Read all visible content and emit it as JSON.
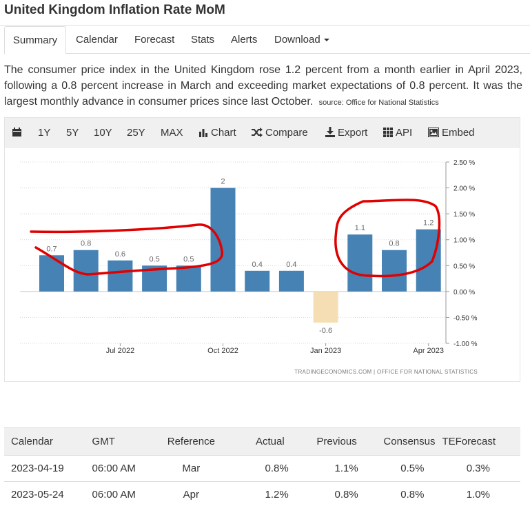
{
  "page": {
    "title": "United Kingdom Inflation Rate MoM"
  },
  "tabs": [
    {
      "label": "Summary"
    },
    {
      "label": "Calendar"
    },
    {
      "label": "Forecast"
    },
    {
      "label": "Stats"
    },
    {
      "label": "Alerts"
    },
    {
      "label": "Download"
    }
  ],
  "description": {
    "text": "The consumer price index in the United Kingdom rose 1.2 percent from a month earlier in April 2023, following a 0.8 percent increase in March and exceeding market expectations of 0.8 percent. It was the largest monthly advance in consumer prices since last October.",
    "source_label": "source:",
    "source_name": "Office for National Statistics"
  },
  "toolbar": {
    "ranges": [
      "1Y",
      "5Y",
      "10Y",
      "25Y",
      "MAX"
    ],
    "chart_label": "Chart",
    "compare_label": "Compare",
    "export_label": "Export",
    "api_label": "API",
    "embed_label": "Embed"
  },
  "chart_data": {
    "type": "bar",
    "categories": [
      "May 2022",
      "Jun 2022",
      "Jul 2022",
      "Aug 2022",
      "Sep 2022",
      "Oct 2022",
      "Nov 2022",
      "Dec 2022",
      "Jan 2023",
      "Feb 2023",
      "Mar 2023",
      "Apr 2023"
    ],
    "values": [
      0.7,
      0.8,
      0.6,
      0.5,
      0.5,
      2,
      0.4,
      0.4,
      -0.6,
      1.1,
      0.8,
      1.2
    ],
    "data_labels": [
      "0.7",
      "0.8",
      "0.6",
      "0.5",
      "0.5",
      "2",
      "0.4",
      "0.4",
      "-0.6",
      "1.1",
      "0.8",
      "1.2"
    ],
    "x_tick_labels": [
      {
        "label": "Jul 2022",
        "index": 2
      },
      {
        "label": "Oct 2022",
        "index": 5
      },
      {
        "label": "Jan 2023",
        "index": 8
      },
      {
        "label": "Apr 2023",
        "index": 11
      }
    ],
    "y_ticks": [
      2.5,
      2.0,
      1.5,
      1.0,
      0.5,
      0.0,
      -0.5,
      -1.0
    ],
    "y_tick_labels": [
      "2.50 %",
      "2.00 %",
      "1.50 %",
      "1.00 %",
      "0.50 %",
      "0.00 %",
      "-0.50 %",
      "-1.00 %"
    ],
    "ylim": [
      -1.0,
      2.5
    ],
    "grid": true,
    "y_axis_position": "right",
    "positive_color": "#4682b4",
    "negative_color": "#f5deb3",
    "credits": "TRADINGECONOMICS.COM  |  OFFICE FOR NATIONAL STATISTICS",
    "annotations": [
      {
        "shape": "red hand-drawn ellipse",
        "around": [
          "May 2022",
          "Jun 2022",
          "Jul 2022",
          "Aug 2022",
          "Sep 2022"
        ],
        "color": "#e00000"
      },
      {
        "shape": "red hand-drawn ellipse",
        "around": [
          "Feb 2023",
          "Mar 2023",
          "Apr 2023"
        ],
        "color": "#e00000"
      }
    ]
  },
  "table": {
    "headers": [
      "Calendar",
      "GMT",
      "Reference",
      "Actual",
      "Previous",
      "Consensus",
      "TEForecast"
    ],
    "rows": [
      [
        "2023-04-19",
        "06:00 AM",
        "Mar",
        "0.8%",
        "1.1%",
        "0.5%",
        "0.3%"
      ],
      [
        "2023-05-24",
        "06:00 AM",
        "Apr",
        "1.2%",
        "0.8%",
        "0.8%",
        "1.0%"
      ]
    ]
  }
}
